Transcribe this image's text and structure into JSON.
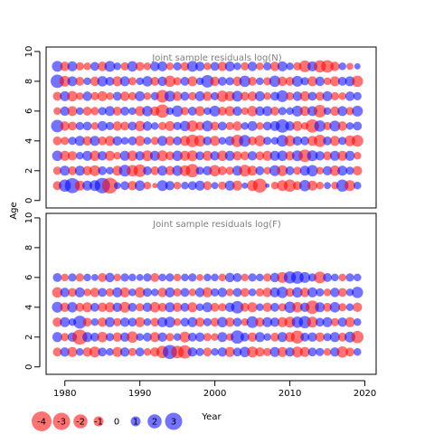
{
  "chart_data": {
    "type": "scatter",
    "style": "bubble",
    "colors": {
      "positive": "#0000ff",
      "negative": "#ff0000",
      "alpha": 0.55
    },
    "xlabel": "Year",
    "ylabel": "Age",
    "xlim": [
      1977.5,
      2021.5
    ],
    "xticks": [
      1980,
      1990,
      2000,
      2010,
      2020
    ],
    "legend": {
      "position": "bottom-left",
      "labels": [
        "-4",
        "-3",
        "-2",
        "-1",
        "0",
        "1",
        "2",
        "3"
      ],
      "values": [
        -4,
        -3,
        -2,
        -1,
        0,
        1,
        2,
        3
      ]
    },
    "panels": [
      {
        "title": "Joint sample residuals log(N)",
        "ylim": [
          -0.5,
          10.3
        ],
        "yticks": [
          0,
          2,
          4,
          6,
          8,
          10
        ],
        "years": [
          1979,
          2019
        ],
        "ages": [
          1,
          2,
          3,
          4,
          5,
          6,
          7,
          8,
          9
        ],
        "residuals": [
          [
            -0.8,
            1.5,
            2.3,
            -1.0,
            1.0,
            1.2,
            2.4,
            -2.5,
            0.5,
            0.8,
            -0.9,
            1.1,
            -0.6,
            -0.3,
            1.2,
            0.9,
            -0.6,
            0.6,
            0.8,
            1.0,
            -0.8,
            0.5,
            -0.7,
            1.0,
            -1.0,
            0.4,
            -1.2,
            -2.0,
            0.2,
            -0.6,
            -1.2,
            -1.5,
            -0.8,
            1.3,
            -1.0,
            -0.6,
            0.5,
            -0.6,
            1.5,
            -1.2,
            0.6
          ],
          [
            -0.7,
            1.0,
            -0.8,
            1.0,
            -0.9,
            -1.2,
            0.8,
            0.6,
            -1.0,
            1.4,
            -1.3,
            -1.6,
            0.8,
            -0.8,
            1.0,
            -0.9,
            1.1,
            -1.2,
            -1.8,
            0.7,
            0.9,
            -1.3,
            -0.8,
            -0.7,
            1.0,
            -1.4,
            -1.0,
            0.8,
            -0.6,
            1.2,
            -1.2,
            0.8,
            -0.7,
            1.0,
            1.3,
            -0.6,
            0.9,
            -1.1,
            1.0,
            0.7,
            -0.9
          ],
          [
            1.1,
            -1.0,
            -0.9,
            0.6,
            1.0,
            -1.1,
            0.9,
            -1.0,
            -0.6,
            1.0,
            -1.1,
            0.9,
            -1.2,
            1.0,
            -1.2,
            -0.8,
            1.1,
            -1.0,
            -1.2,
            0.8,
            -1.0,
            0.9,
            -1.1,
            1.0,
            -0.9,
            -0.8,
            0.9,
            -0.8,
            -1.0,
            1.0,
            1.1,
            -0.9,
            1.2,
            -1.6,
            1.2,
            0.9,
            -0.8,
            1.0,
            -1.0,
            1.0,
            -0.6
          ],
          [
            -0.8,
            -0.7,
            0.7,
            1.0,
            -0.9,
            1.0,
            -0.8,
            -1.0,
            0.9,
            0.6,
            0.8,
            -1.0,
            0.6,
            -0.7,
            1.0,
            -0.9,
            0.8,
            -1.0,
            -1.6,
            -1.3,
            0.8,
            -1.0,
            0.6,
            0.9,
            -1.5,
            1.4,
            -0.8,
            -1.2,
            0.7,
            0.6,
            1.4,
            -1.2,
            0.9,
            0.8,
            -1.0,
            -1.5,
            0.8,
            -1.0,
            0.7,
            -1.2,
            -1.4
          ],
          [
            1.6,
            -0.9,
            -0.8,
            0.7,
            0.8,
            -0.6,
            1.0,
            0.7,
            -0.9,
            -0.8,
            0.8,
            -1.1,
            0.9,
            0.6,
            -0.7,
            -1.0,
            0.7,
            1.1,
            -1.3,
            -0.8,
            1.2,
            -0.8,
            0.8,
            -0.7,
            -0.9,
            0.6,
            1.0,
            -0.6,
            0.8,
            1.0,
            1.8,
            0.9,
            -1.0,
            -0.6,
            -1.8,
            1.3,
            -0.7,
            1.2,
            -0.9,
            0.6,
            0.8
          ],
          [
            -0.6,
            0.9,
            -1.0,
            0.6,
            -0.8,
            -0.7,
            0.7,
            1.0,
            -0.8,
            0.8,
            0.6,
            -1.0,
            1.1,
            -0.9,
            -1.8,
            0.6,
            1.3,
            -0.7,
            0.8,
            -1.0,
            0.6,
            1.2,
            -0.8,
            -1.0,
            0.9,
            -0.6,
            -1.1,
            0.9,
            1.0,
            -0.8,
            0.7,
            0.6,
            1.2,
            -1.0,
            1.0,
            -1.6,
            0.6,
            -0.9,
            1.0,
            -0.7,
            1.2
          ],
          [
            -0.8,
            1.0,
            -1.1,
            -0.6,
            0.9,
            -0.7,
            -1.0,
            -0.6,
            0.8,
            -0.9,
            -0.7,
            1.0,
            -0.6,
            0.7,
            -1.6,
            1.2,
            -0.9,
            0.8,
            -0.7,
            1.0,
            -0.9,
            0.7,
            -1.3,
            -1.0,
            1.2,
            -0.8,
            -0.9,
            1.0,
            -0.6,
            0.8,
            1.4,
            -0.7,
            0.9,
            -1.0,
            0.8,
            -0.8,
            1.0,
            -0.7,
            -0.6,
            0.9,
            0.7
          ],
          [
            1.8,
            -1.2,
            1.0,
            -0.8,
            0.6,
            -0.9,
            1.1,
            0.8,
            -1.0,
            1.0,
            -0.7,
            0.6,
            1.1,
            -0.8,
            0.9,
            -1.3,
            -0.7,
            0.8,
            -1.0,
            0.6,
            1.6,
            -0.9,
            0.8,
            0.7,
            -0.9,
            1.3,
            -0.8,
            0.6,
            -0.7,
            1.3,
            -0.9,
            -0.8,
            1.2,
            0.7,
            -1.0,
            0.9,
            -0.6,
            -1.0,
            0.8,
            1.0,
            -1.3
          ],
          [
            1.2,
            -0.9,
            1.0,
            -0.7,
            -0.6,
            0.8,
            -0.9,
            1.2,
            0.6,
            -0.7,
            1.1,
            -0.8,
            -0.6,
            0.9,
            1.0,
            -0.6,
            0.7,
            -0.8,
            1.2,
            0.9,
            -0.6,
            0.8,
            -0.9,
            1.0,
            0.6,
            -0.7,
            0.9,
            -0.6,
            0.7,
            -0.9,
            1.0,
            0.6,
            -0.7,
            -1.4,
            1.0,
            -1.5,
            -1.6,
            -0.9,
            0.6,
            -0.5,
            0.4
          ]
        ]
      },
      {
        "title": "Joint sample residuals log(F)",
        "ylim": [
          -0.5,
          10.3
        ],
        "yticks": [
          0,
          2,
          4,
          6,
          8,
          10
        ],
        "years": [
          1979,
          2019
        ],
        "ages": [
          1,
          2,
          3,
          4,
          5,
          6
        ],
        "residuals": [
          [
            -0.8,
            0.9,
            -1.0,
            0.6,
            -0.9,
            -1.2,
            0.8,
            0.6,
            -1.0,
            0.9,
            -0.7,
            0.8,
            -0.6,
            -0.9,
            -1.5,
            2.0,
            -1.6,
            -1.8,
            0.9,
            0.7,
            -0.8,
            0.6,
            0.9,
            -1.0,
            0.8,
            1.1,
            -1.2,
            -0.9,
            -0.7,
            1.0,
            -1.0,
            0.9,
            -1.2,
            -1.0,
            0.8,
            0.7,
            -0.6,
            0.9,
            -1.3,
            -0.8,
            0.6
          ],
          [
            1.0,
            -0.7,
            0.9,
            -2.3,
            1.0,
            0.8,
            -1.1,
            0.7,
            -0.9,
            0.9,
            -1.3,
            0.6,
            0.8,
            -1.0,
            0.9,
            -0.7,
            0.6,
            -1.2,
            0.8,
            0.9,
            -0.7,
            -0.6,
            1.0,
            -0.6,
            1.8,
            0.8,
            -0.9,
            1.0,
            0.6,
            -0.8,
            1.0,
            -1.0,
            -1.7,
            0.8,
            0.9,
            -0.9,
            0.7,
            1.0,
            -0.8,
            1.2,
            -1.5
          ],
          [
            -0.9,
            1.0,
            0.6,
            1.7,
            -0.8,
            0.6,
            -0.9,
            1.0,
            -0.7,
            0.9,
            0.8,
            -1.0,
            0.6,
            -0.8,
            1.0,
            1.2,
            -0.6,
            0.8,
            1.0,
            -0.9,
            0.7,
            -0.8,
            1.1,
            -0.9,
            0.8,
            -0.6,
            1.4,
            -0.9,
            1.0,
            0.9,
            -1.0,
            -1.2,
            1.3,
            1.5,
            -1.2,
            0.8,
            1.0,
            -0.7,
            0.9,
            -1.0,
            0.6
          ],
          [
            1.2,
            -0.9,
            1.1,
            -0.8,
            -1.0,
            0.8,
            -0.9,
            -1.0,
            0.9,
            -1.2,
            0.8,
            -0.7,
            0.9,
            -1.1,
            -0.8,
            1.0,
            -0.9,
            0.8,
            -1.0,
            0.6,
            1.0,
            -0.8,
            -0.7,
            0.9,
            1.6,
            -0.8,
            -1.0,
            0.6,
            -0.9,
            0.8,
            -0.7,
            1.3,
            -1.1,
            0.9,
            -1.8,
            1.0,
            -0.8,
            1.1,
            -0.7,
            0.6,
            -0.9
          ],
          [
            -1.1,
            0.9,
            -0.8,
            1.0,
            -0.6,
            -0.9,
            0.8,
            -0.7,
            1.0,
            -1.0,
            0.6,
            -1.1,
            0.8,
            0.6,
            -0.9,
            1.0,
            -0.7,
            0.8,
            -0.6,
            0.9,
            -1.0,
            0.7,
            0.9,
            -0.6,
            0.8,
            -0.8,
            0.6,
            -0.7,
            -0.9,
            1.0,
            1.3,
            -0.8,
            1.1,
            -0.9,
            1.0,
            0.7,
            -0.6,
            0.9,
            -0.8,
            0.6,
            1.3
          ],
          [
            0.8,
            -0.6,
            0.7,
            -0.7,
            0.6,
            0.5,
            -0.8,
            0.9,
            -0.6,
            0.7,
            0.6,
            0.5,
            0.7,
            -0.8,
            0.6,
            0.7,
            -0.6,
            0.6,
            0.7,
            -0.5,
            0.6,
            0.6,
            -0.6,
            0.9,
            0.8,
            -0.6,
            0.7,
            0.6,
            -0.7,
            0.9,
            -1.2,
            1.5,
            1.6,
            1.2,
            0.7,
            -1.4,
            0.8,
            0.6,
            -0.6,
            0.7,
            0.6
          ]
        ]
      }
    ]
  }
}
